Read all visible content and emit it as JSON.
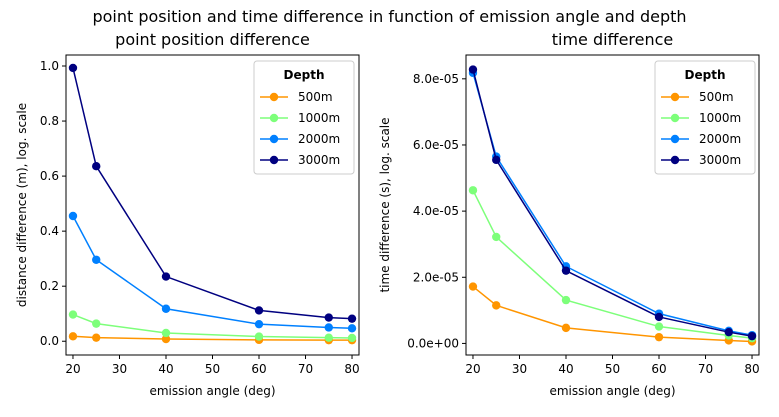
{
  "figure": {
    "suptitle": "point position and time difference in function of emission angle and depth"
  },
  "chart_data": [
    {
      "type": "line",
      "title": "point position difference",
      "xlabel": "emission angle (deg)",
      "ylabel": "distance difference (m), log. scale",
      "xlim": [
        18.5,
        81.5
      ],
      "ylim": [
        -0.05,
        1.04
      ],
      "xticks": [
        20,
        30,
        40,
        50,
        60,
        70,
        80
      ],
      "yticks": [
        0.0,
        0.2,
        0.4,
        0.6,
        0.8,
        1.0
      ],
      "ytick_labels": [
        "0.0",
        "0.2",
        "0.4",
        "0.6",
        "0.8",
        "1.0"
      ],
      "legend_title": "Depth",
      "legend_position": "top-right",
      "x": [
        20,
        25,
        40,
        60,
        75,
        80
      ],
      "series": [
        {
          "name": "500m",
          "color": "#ff9500",
          "values": [
            0.018,
            0.013,
            0.008,
            0.005,
            0.004,
            0.004
          ]
        },
        {
          "name": "1000m",
          "color": "#7dff7a",
          "values": [
            0.097,
            0.064,
            0.03,
            0.017,
            0.013,
            0.012
          ]
        },
        {
          "name": "2000m",
          "color": "#0080ff",
          "values": [
            0.455,
            0.296,
            0.118,
            0.062,
            0.05,
            0.047
          ]
        },
        {
          "name": "3000m",
          "color": "#000080",
          "values": [
            0.993,
            0.636,
            0.235,
            0.112,
            0.086,
            0.082
          ]
        }
      ]
    },
    {
      "type": "line",
      "title": "time difference",
      "xlabel": "emission angle (deg)",
      "ylabel": "time difference (s), log. scale",
      "xlim": [
        18.5,
        81.5
      ],
      "ylim": [
        -3.5e-06,
        8.72e-05
      ],
      "xticks": [
        20,
        30,
        40,
        50,
        60,
        70,
        80
      ],
      "yticks": [
        0,
        2e-05,
        4e-05,
        6e-05,
        8e-05
      ],
      "ytick_labels": [
        "0.0e+00",
        "2.0e-05",
        "4.0e-05",
        "6.0e-05",
        "8.0e-05"
      ],
      "legend_title": "Depth",
      "legend_position": "top-right",
      "x": [
        20,
        25,
        40,
        60,
        75,
        80
      ],
      "series": [
        {
          "name": "500m",
          "color": "#ff9500",
          "values": [
            1.72e-05,
            1.15e-05,
            4.7e-06,
            1.9e-06,
            9e-07,
            6e-07
          ]
        },
        {
          "name": "1000m",
          "color": "#7dff7a",
          "values": [
            4.63e-05,
            3.22e-05,
            1.31e-05,
            5.1e-06,
            2.4e-06,
            1.6e-06
          ]
        },
        {
          "name": "2000m",
          "color": "#0080ff",
          "values": [
            8.18e-05,
            5.65e-05,
            2.33e-05,
            9e-06,
            3.8e-06,
            2.5e-06
          ]
        },
        {
          "name": "3000m",
          "color": "#000080",
          "values": [
            8.28e-05,
            5.55e-05,
            2.2e-05,
            8e-06,
            3.4e-06,
            2.2e-06
          ]
        }
      ]
    }
  ]
}
